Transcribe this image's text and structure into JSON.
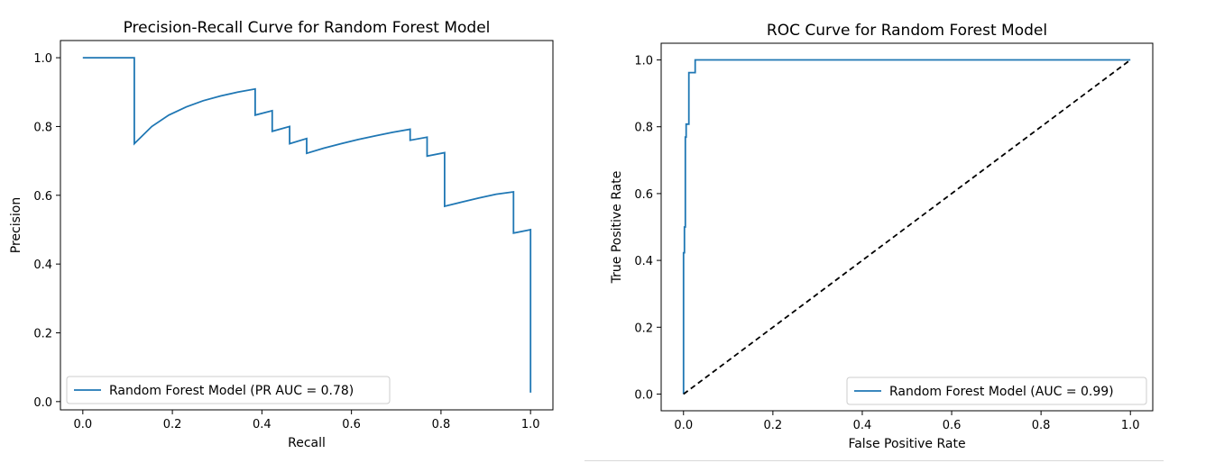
{
  "chart_data": [
    {
      "type": "line",
      "title": "Precision-Recall Curve for Random Forest Model",
      "xlabel": "Recall",
      "ylabel": "Precision",
      "xlim": [
        -0.05,
        1.05
      ],
      "ylim": [
        -0.024,
        1.05
      ],
      "xticks": [
        0.0,
        0.2,
        0.4,
        0.6,
        0.8,
        1.0
      ],
      "yticks": [
        0.0,
        0.2,
        0.4,
        0.6,
        0.8,
        1.0
      ],
      "xtick_labels": [
        "0.0",
        "0.2",
        "0.4",
        "0.6",
        "0.8",
        "1.0"
      ],
      "ytick_labels": [
        "0.0",
        "0.2",
        "0.4",
        "0.6",
        "0.8",
        "1.0"
      ],
      "grid": false,
      "legend_position": "lower-left",
      "series": [
        {
          "name": "Random Forest Model (PR AUC = 0.78)",
          "color": "#1f77b4",
          "dashed": false,
          "x": [
            0.0,
            0.115,
            0.115,
            0.154,
            0.192,
            0.231,
            0.269,
            0.308,
            0.346,
            0.385,
            0.385,
            0.423,
            0.423,
            0.462,
            0.462,
            0.5,
            0.5,
            0.538,
            0.577,
            0.615,
            0.654,
            0.692,
            0.731,
            0.731,
            0.769,
            0.769,
            0.808,
            0.808,
            0.846,
            0.885,
            0.923,
            0.962,
            0.962,
            1.0,
            1.0
          ],
          "y": [
            1.0,
            1.0,
            0.75,
            0.8,
            0.833,
            0.857,
            0.875,
            0.889,
            0.9,
            0.909,
            0.833,
            0.846,
            0.786,
            0.8,
            0.75,
            0.765,
            0.722,
            0.737,
            0.75,
            0.762,
            0.773,
            0.783,
            0.792,
            0.76,
            0.769,
            0.714,
            0.724,
            0.568,
            0.58,
            0.592,
            0.603,
            0.61,
            0.49,
            0.5,
            0.026
          ]
        }
      ]
    },
    {
      "type": "line",
      "title": "ROC Curve for Random Forest Model",
      "xlabel": "False Positive Rate",
      "ylabel": "True Positive Rate",
      "xlim": [
        -0.05,
        1.05
      ],
      "ylim": [
        -0.05,
        1.05
      ],
      "xticks": [
        0.0,
        0.2,
        0.4,
        0.6,
        0.8,
        1.0
      ],
      "yticks": [
        0.0,
        0.2,
        0.4,
        0.6,
        0.8,
        1.0
      ],
      "xtick_labels": [
        "0.0",
        "0.2",
        "0.4",
        "0.6",
        "0.8",
        "1.0"
      ],
      "ytick_labels": [
        "0.0",
        "0.2",
        "0.4",
        "0.6",
        "0.8",
        "1.0"
      ],
      "grid": false,
      "legend_position": "lower-right",
      "series": [
        {
          "name": "Random Forest Model (AUC = 0.99)",
          "color": "#1f77b4",
          "dashed": false,
          "x": [
            0.0,
            0.0,
            0.002,
            0.002,
            0.004,
            0.004,
            0.006,
            0.006,
            0.012,
            0.012,
            0.02,
            0.02,
            0.026,
            0.026,
            1.0
          ],
          "y": [
            0.0,
            0.423,
            0.423,
            0.5,
            0.5,
            0.769,
            0.769,
            0.808,
            0.808,
            0.962,
            0.962,
            0.962,
            0.962,
            1.0,
            1.0
          ]
        },
        {
          "color": "#000000",
          "dashed": true,
          "x": [
            0.0,
            1.0
          ],
          "y": [
            0.0,
            1.0
          ]
        }
      ]
    }
  ]
}
